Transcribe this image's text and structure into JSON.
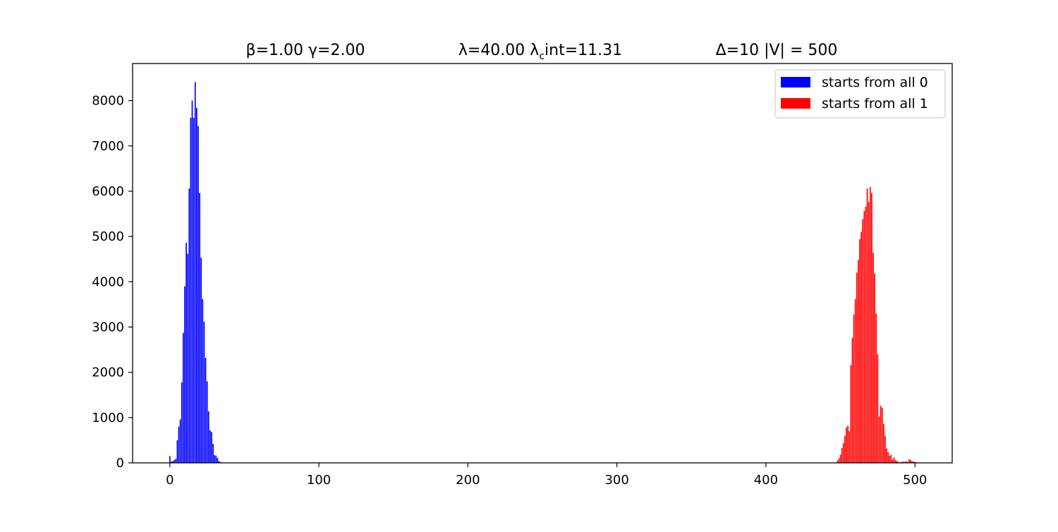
{
  "chart_data": {
    "type": "bar",
    "title_parts": [
      {
        "main": "β=1.00  γ=2.00"
      },
      {
        "main": "λ=40.00  λ",
        "sub": "c",
        "rest": "int=11.31"
      },
      {
        "main": "Δ=10   |V| = 500"
      }
    ],
    "xlabel": "",
    "ylabel": "",
    "xlim": [
      -25,
      525
    ],
    "ylim": [
      0,
      8820
    ],
    "xticks": [
      0,
      100,
      200,
      300,
      400,
      500
    ],
    "yticks": [
      0,
      1000,
      2000,
      3000,
      4000,
      5000,
      6000,
      7000,
      8000
    ],
    "legend_position": "upper right",
    "series": [
      {
        "name": "starts from all 0",
        "color": "#0000ff",
        "x": [
          0,
          1,
          2,
          3,
          4,
          5,
          6,
          7,
          8,
          9,
          10,
          11,
          12,
          13,
          14,
          15,
          16,
          17,
          18,
          19,
          20,
          21,
          22,
          23,
          24,
          25,
          26,
          27,
          28,
          29,
          30,
          31,
          32,
          33,
          34,
          35
        ],
        "values": [
          150,
          30,
          40,
          60,
          90,
          500,
          800,
          960,
          1780,
          2870,
          3900,
          4860,
          4620,
          6060,
          7620,
          8000,
          7620,
          8410,
          7840,
          7440,
          5960,
          4530,
          3620,
          3120,
          2320,
          1800,
          1140,
          720,
          680,
          420,
          170,
          160,
          110,
          40,
          20,
          10
        ]
      },
      {
        "name": "starts from all 1",
        "color": "#ff0000",
        "x": [
          448,
          449,
          450,
          451,
          452,
          453,
          454,
          455,
          456,
          457,
          458,
          459,
          460,
          461,
          462,
          463,
          464,
          465,
          466,
          467,
          468,
          469,
          470,
          471,
          472,
          473,
          474,
          475,
          476,
          477,
          478,
          479,
          480,
          481,
          482,
          483,
          484,
          485,
          486,
          487,
          488,
          489,
          490,
          491,
          492,
          493,
          494,
          495,
          496,
          497,
          498,
          499,
          500,
          501,
          502
        ],
        "values": [
          50,
          100,
          180,
          330,
          440,
          600,
          780,
          820,
          700,
          2160,
          2760,
          3280,
          3620,
          4200,
          4480,
          4940,
          5100,
          5380,
          5560,
          5660,
          6060,
          5760,
          6090,
          5960,
          4640,
          4180,
          3300,
          2400,
          1020,
          1260,
          1220,
          860,
          600,
          320,
          240,
          160,
          180,
          80,
          120,
          60,
          40,
          20,
          10,
          20,
          30,
          20,
          40,
          20,
          80,
          60,
          40,
          30,
          20,
          20,
          10
        ]
      }
    ]
  }
}
